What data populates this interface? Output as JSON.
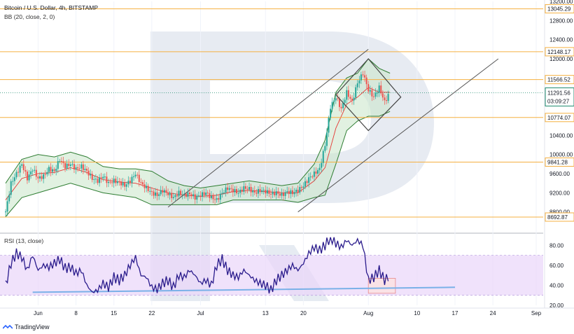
{
  "header": {
    "title": "Bitcoin / U.S. Dollar, 4h, BITSTAMP",
    "bb_indicator": "BB (20, close, 2, 0)",
    "rsi_indicator": "RSI (13, close)"
  },
  "branding": {
    "tradingview": "TradingView"
  },
  "colors": {
    "candle_up": "#26a69a",
    "candle_down": "#ef5350",
    "bollinger": "#2e7d32",
    "bollinger_fill": "#c8e6c9",
    "bollinger_mid": "#e53935",
    "level_line": "#f5b041",
    "trend_line": "#555555",
    "rsi_line": "#2a1b8c",
    "rsi_band": "#e9d5f9",
    "rsi_trend": "#7ab1e8",
    "watermark": "#d3dbe8",
    "current_price": "#1b8a6b"
  },
  "chart_data": [
    {
      "type": "candlestick",
      "title": "Bitcoin / U.S. Dollar, 4h, BITSTAMP",
      "ylim": [
        8400,
        13200
      ],
      "y_ticks": [
        8800,
        9200,
        9600,
        10000,
        10400,
        10800,
        11200,
        11600,
        12000,
        12400,
        12800,
        13200
      ],
      "x_ticks": [
        "Jun",
        "8",
        "15",
        "22",
        "Jul",
        "13",
        "20",
        "Aug",
        "10",
        "17",
        "24",
        "Sep"
      ],
      "x_tick_days": [
        0,
        7,
        14,
        21,
        30,
        42,
        49,
        61,
        70,
        77,
        84,
        92
      ],
      "x_range_days": [
        -6,
        92
      ],
      "close_path": [
        [
          -6,
          8800
        ],
        [
          -5,
          9400
        ],
        [
          -4,
          9600
        ],
        [
          -3,
          9800
        ],
        [
          -2,
          9500
        ],
        [
          -1,
          9700
        ],
        [
          0,
          9500
        ],
        [
          1,
          9550
        ],
        [
          2,
          9700
        ],
        [
          3,
          9650
        ],
        [
          4,
          9900
        ],
        [
          5,
          9750
        ],
        [
          6,
          9800
        ],
        [
          7,
          9700
        ],
        [
          8,
          9750
        ],
        [
          9,
          9650
        ],
        [
          10,
          9500
        ],
        [
          11,
          9450
        ],
        [
          12,
          9550
        ],
        [
          13,
          9400
        ],
        [
          14,
          9450
        ],
        [
          15,
          9420
        ],
        [
          16,
          9350
        ],
        [
          17,
          9450
        ],
        [
          18,
          9600
        ],
        [
          19,
          9400
        ],
        [
          20,
          9300
        ],
        [
          21,
          9200
        ],
        [
          22,
          9150
        ],
        [
          23,
          9250
        ],
        [
          24,
          9180
        ],
        [
          25,
          9100
        ],
        [
          26,
          9200
        ],
        [
          27,
          9150
        ],
        [
          28,
          9180
        ],
        [
          29,
          9100
        ],
        [
          30,
          9150
        ],
        [
          31,
          9200
        ],
        [
          32,
          9100
        ],
        [
          33,
          9050
        ],
        [
          34,
          9200
        ],
        [
          35,
          9300
        ],
        [
          36,
          9250
        ],
        [
          37,
          9200
        ],
        [
          38,
          9300
        ],
        [
          39,
          9280
        ],
        [
          40,
          9200
        ],
        [
          41,
          9250
        ],
        [
          42,
          9230
        ],
        [
          43,
          9180
        ],
        [
          44,
          9200
        ],
        [
          45,
          9150
        ],
        [
          46,
          9220
        ],
        [
          47,
          9200
        ],
        [
          48,
          9250
        ],
        [
          49,
          9350
        ],
        [
          50,
          9500
        ],
        [
          51,
          9600
        ],
        [
          52,
          9700
        ],
        [
          53,
          10200
        ],
        [
          54,
          11000
        ],
        [
          55,
          11200
        ],
        [
          56,
          10950
        ],
        [
          57,
          11300
        ],
        [
          58,
          11100
        ],
        [
          59,
          11500
        ],
        [
          60,
          11700
        ],
        [
          61,
          11350
        ],
        [
          62,
          11200
        ],
        [
          63,
          11400
        ],
        [
          64,
          11100
        ],
        [
          65,
          11300
        ]
      ],
      "bollinger_upper": [
        [
          -6,
          9400
        ],
        [
          -3,
          9900
        ],
        [
          0,
          10000
        ],
        [
          3,
          9950
        ],
        [
          6,
          10050
        ],
        [
          9,
          9950
        ],
        [
          12,
          9750
        ],
        [
          15,
          9700
        ],
        [
          18,
          9700
        ],
        [
          21,
          9650
        ],
        [
          24,
          9450
        ],
        [
          27,
          9350
        ],
        [
          30,
          9300
        ],
        [
          33,
          9350
        ],
        [
          36,
          9400
        ],
        [
          39,
          9450
        ],
        [
          42,
          9400
        ],
        [
          45,
          9350
        ],
        [
          48,
          9400
        ],
        [
          51,
          9800
        ],
        [
          53,
          10300
        ],
        [
          55,
          11300
        ],
        [
          57,
          11600
        ],
        [
          59,
          11700
        ],
        [
          61,
          12000
        ],
        [
          63,
          11800
        ],
        [
          65,
          11700
        ]
      ],
      "bollinger_lower": [
        [
          -6,
          8700
        ],
        [
          -3,
          9100
        ],
        [
          0,
          9200
        ],
        [
          3,
          9300
        ],
        [
          6,
          9400
        ],
        [
          9,
          9300
        ],
        [
          12,
          9200
        ],
        [
          15,
          9150
        ],
        [
          18,
          9100
        ],
        [
          21,
          8950
        ],
        [
          24,
          8950
        ],
        [
          27,
          8950
        ],
        [
          30,
          8950
        ],
        [
          33,
          8950
        ],
        [
          36,
          9050
        ],
        [
          39,
          9050
        ],
        [
          42,
          9050
        ],
        [
          45,
          9050
        ],
        [
          48,
          9000
        ],
        [
          51,
          9100
        ],
        [
          53,
          9150
        ],
        [
          55,
          9800
        ],
        [
          57,
          10500
        ],
        [
          59,
          10700
        ],
        [
          61,
          10800
        ],
        [
          63,
          10800
        ],
        [
          65,
          10900
        ]
      ],
      "levels": [
        13045.29,
        12148.17,
        11566.52,
        10774.07,
        9841.28,
        8692.87
      ],
      "current_price": 11291.56,
      "countdown": "03:09:27",
      "channel_upper": [
        [
          24,
          8900
        ],
        [
          61,
          12200
        ]
      ],
      "channel_lower": [
        [
          48,
          8800
        ],
        [
          85,
          12000
        ]
      ],
      "diamond": {
        "left": [
          55,
          11250
        ],
        "top": [
          61,
          12000
        ],
        "right": [
          67,
          11200
        ],
        "bottom": [
          61,
          10500
        ]
      }
    },
    {
      "type": "line",
      "title": "RSI (13, close)",
      "ylim": [
        20,
        90
      ],
      "y_ticks": [
        20,
        40,
        60,
        80
      ],
      "band": [
        30,
        70
      ],
      "rsi_path": [
        [
          -6,
          40
        ],
        [
          -5,
          62
        ],
        [
          -4,
          72
        ],
        [
          -3,
          68
        ],
        [
          -2,
          55
        ],
        [
          -1,
          70
        ],
        [
          0,
          55
        ],
        [
          1,
          60
        ],
        [
          2,
          58
        ],
        [
          3,
          62
        ],
        [
          4,
          66
        ],
        [
          5,
          57
        ],
        [
          6,
          58
        ],
        [
          7,
          52
        ],
        [
          8,
          55
        ],
        [
          9,
          40
        ],
        [
          10,
          33
        ],
        [
          11,
          35
        ],
        [
          12,
          42
        ],
        [
          13,
          38
        ],
        [
          14,
          48
        ],
        [
          15,
          45
        ],
        [
          16,
          50
        ],
        [
          17,
          60
        ],
        [
          18,
          68
        ],
        [
          19,
          50
        ],
        [
          20,
          48
        ],
        [
          21,
          38
        ],
        [
          22,
          36
        ],
        [
          23,
          42
        ],
        [
          24,
          45
        ],
        [
          25,
          38
        ],
        [
          26,
          50
        ],
        [
          27,
          48
        ],
        [
          28,
          55
        ],
        [
          29,
          50
        ],
        [
          30,
          42
        ],
        [
          31,
          45
        ],
        [
          32,
          40
        ],
        [
          33,
          60
        ],
        [
          34,
          66
        ],
        [
          35,
          55
        ],
        [
          36,
          50
        ],
        [
          37,
          48
        ],
        [
          38,
          55
        ],
        [
          39,
          50
        ],
        [
          40,
          45
        ],
        [
          41,
          42
        ],
        [
          42,
          40
        ],
        [
          43,
          35
        ],
        [
          44,
          45
        ],
        [
          45,
          50
        ],
        [
          46,
          55
        ],
        [
          47,
          60
        ],
        [
          48,
          55
        ],
        [
          49,
          62
        ],
        [
          50,
          72
        ],
        [
          51,
          78
        ],
        [
          52,
          75
        ],
        [
          53,
          80
        ],
        [
          54,
          88
        ],
        [
          55,
          82
        ],
        [
          56,
          78
        ],
        [
          57,
          85
        ],
        [
          58,
          80
        ],
        [
          59,
          85
        ],
        [
          60,
          80
        ],
        [
          61,
          45
        ],
        [
          62,
          48
        ],
        [
          63,
          55
        ],
        [
          64,
          45
        ],
        [
          65,
          50
        ]
      ],
      "trend_line": [
        [
          -1,
          33
        ],
        [
          77,
          38
        ]
      ],
      "highlight_box": {
        "x": [
          61,
          66
        ],
        "y": [
          32,
          47
        ]
      }
    }
  ]
}
